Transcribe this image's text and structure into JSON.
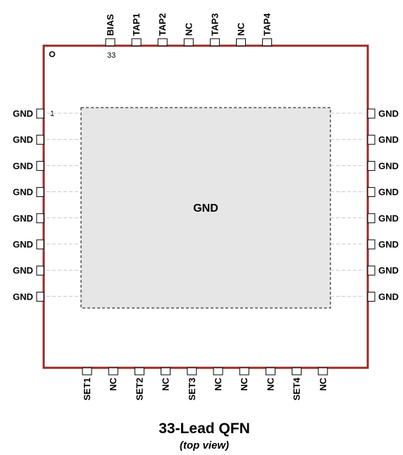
{
  "package": {
    "title": "33-Lead QFN",
    "subtitle": "(top view)",
    "pad_label": "GND",
    "pin1_number": "1",
    "pin33_number": "33",
    "body_color": "#9a2a24",
    "pad_fill": "#e6e6e6"
  },
  "top_pins": [
    "BIAS",
    "TAP1",
    "TAP2",
    "NC",
    "TAP3",
    "NC",
    "TAP4"
  ],
  "left_pins": [
    "GND",
    "GND",
    "GND",
    "GND",
    "GND",
    "GND",
    "GND",
    "GND"
  ],
  "right_pins": [
    "GND",
    "GND",
    "GND",
    "GND",
    "GND",
    "GND",
    "GND",
    "GND"
  ],
  "bottom_pins": [
    "SET1",
    "NC",
    "SET2",
    "NC",
    "SET3",
    "NC",
    "NC",
    "NC",
    "SET4",
    "NC"
  ]
}
